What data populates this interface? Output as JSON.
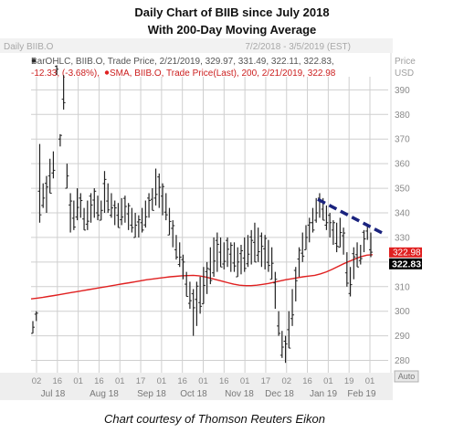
{
  "header": {
    "title_line1": "Daily Chart of BIIB since July 2018",
    "title_line2": "With 200-Day Moving Average"
  },
  "panel": {
    "name": "Daily BIIB.O",
    "date_range": "7/2/2018 - 3/5/2019 (EST)",
    "price_label": "Price",
    "currency": "USD",
    "legend_line1": "BarOHLC, BIIB.O, Trade Price, 2/21/2019, 329.97, 331.49, 322.11, 322.83,",
    "legend_line2a": "-12.33, (-3.68%),",
    "legend_line2b": "SMA, BIIB.O, Trade Price(Last), 200, 2/21/2019, 322.98",
    "sma_price_tag": "322.98",
    "last_price_tag": "322.83",
    "auto_button": "Auto"
  },
  "caption": "Chart courtesy of Thomson Reuters Eikon",
  "colors": {
    "bars": "#222222",
    "sma": "#e02020",
    "trendline": "#1a237e",
    "sma_tag": "#e02020",
    "last_tag": "#000000",
    "grid": "#cfcfcf",
    "axis_strip": "#eeeeee"
  },
  "chart_data": {
    "type": "ohlc",
    "title": "Daily Chart of BIIB since July 2018",
    "subtitle": "With 200-Day Moving Average",
    "ylim": [
      275,
      405
    ],
    "y_ticks": [
      280,
      290,
      300,
      310,
      320,
      330,
      340,
      350,
      360,
      370,
      380,
      390
    ],
    "x_ticks": [
      "02",
      "16",
      "01",
      "16",
      "01",
      "17",
      "01",
      "16",
      "01",
      "16",
      "01",
      "17",
      "02",
      "16",
      "01",
      "19",
      "01"
    ],
    "months": [
      "Jul 18",
      "Aug 18",
      "Sep 18",
      "Oct 18",
      "Nov 18",
      "Dec 18",
      "Jan 19",
      "Feb 19"
    ],
    "grid": true,
    "legend": "top-left",
    "series": [
      {
        "name": "BarOHLC",
        "values": [
          [
            291,
            296
          ],
          [
            296,
            300
          ],
          [
            336,
            368
          ],
          [
            342,
            352
          ],
          [
            340,
            355
          ],
          [
            348,
            362
          ],
          [
            354,
            365
          ],
          [
            396,
            400
          ],
          [
            367,
            372
          ],
          [
            382,
            396
          ],
          [
            350,
            360
          ],
          [
            332,
            348
          ],
          [
            333,
            345
          ],
          [
            337,
            350
          ],
          [
            338,
            348
          ],
          [
            333,
            342
          ],
          [
            333,
            345
          ],
          [
            336,
            348
          ],
          [
            338,
            350
          ],
          [
            337,
            347
          ],
          [
            337,
            345
          ],
          [
            340,
            357
          ],
          [
            340,
            352
          ],
          [
            338,
            348
          ],
          [
            335,
            345
          ],
          [
            334,
            344
          ],
          [
            335,
            346
          ],
          [
            336,
            347
          ],
          [
            333,
            344
          ],
          [
            332,
            342
          ],
          [
            330,
            340
          ],
          [
            330,
            339
          ],
          [
            332,
            342
          ],
          [
            334,
            345
          ],
          [
            338,
            348
          ],
          [
            341,
            350
          ],
          [
            343,
            358
          ],
          [
            342,
            356
          ],
          [
            339,
            352
          ],
          [
            337,
            348
          ],
          [
            331,
            342
          ],
          [
            326,
            337
          ],
          [
            321,
            331
          ],
          [
            318,
            328
          ],
          [
            313,
            323
          ],
          [
            306,
            316
          ],
          [
            301,
            312
          ],
          [
            290,
            309
          ],
          [
            294,
            312
          ],
          [
            299,
            314
          ],
          [
            303,
            318
          ],
          [
            307,
            320
          ],
          [
            311,
            326
          ],
          [
            314,
            330
          ],
          [
            316,
            332
          ],
          [
            318,
            330
          ],
          [
            317,
            328
          ],
          [
            318,
            330
          ],
          [
            316,
            328
          ],
          [
            316,
            328
          ],
          [
            314,
            326
          ],
          [
            315,
            327
          ],
          [
            316,
            330
          ],
          [
            318,
            331
          ],
          [
            319,
            333
          ],
          [
            320,
            336
          ],
          [
            320,
            334
          ],
          [
            318,
            332
          ],
          [
            317,
            331
          ],
          [
            316,
            329
          ],
          [
            313,
            326
          ],
          [
            301,
            316
          ],
          [
            290,
            300
          ],
          [
            281,
            292
          ],
          [
            279,
            290
          ],
          [
            285,
            300
          ],
          [
            294,
            309
          ],
          [
            304,
            318
          ],
          [
            314,
            326
          ],
          [
            320,
            332
          ],
          [
            325,
            335
          ],
          [
            328,
            338
          ],
          [
            332,
            342
          ],
          [
            336,
            346
          ],
          [
            338,
            348
          ],
          [
            337,
            346
          ],
          [
            333,
            343
          ],
          [
            330,
            340
          ],
          [
            327,
            337
          ],
          [
            324,
            336
          ],
          [
            326,
            338
          ],
          [
            323,
            334
          ],
          [
            310,
            324
          ],
          [
            306,
            318
          ],
          [
            313,
            326
          ],
          [
            318,
            328
          ],
          [
            319,
            327
          ],
          [
            324,
            333
          ],
          [
            329,
            335
          ],
          [
            322,
            332
          ]
        ]
      },
      {
        "name": "SMA 200",
        "values": [
          305,
          305.3,
          305.6,
          306,
          306.4,
          306.8,
          307.2,
          307.6,
          308,
          308.4,
          308.8,
          309.2,
          309.6,
          310,
          310.4,
          310.8,
          311.2,
          311.6,
          312,
          312.4,
          312.8,
          313.1,
          313.4,
          313.7,
          314,
          314.2,
          314.4,
          314.5,
          314.6,
          314.4,
          314,
          313.4,
          312.8,
          312.2,
          311.6,
          311,
          310.6,
          310.4,
          310.4,
          310.6,
          310.9,
          311.3,
          311.8,
          312.3,
          312.8,
          313.2,
          313.6,
          314,
          314.3,
          314.6,
          315.2,
          316,
          317,
          318.2,
          319.3,
          320.3,
          321.3,
          322.2,
          322.8,
          322.98
        ]
      }
    ],
    "annotations": [
      {
        "type": "trendline",
        "from": [
          "Jan 19",
          345.5
        ],
        "to": [
          "Feb 19",
          331.5
        ]
      }
    ]
  }
}
